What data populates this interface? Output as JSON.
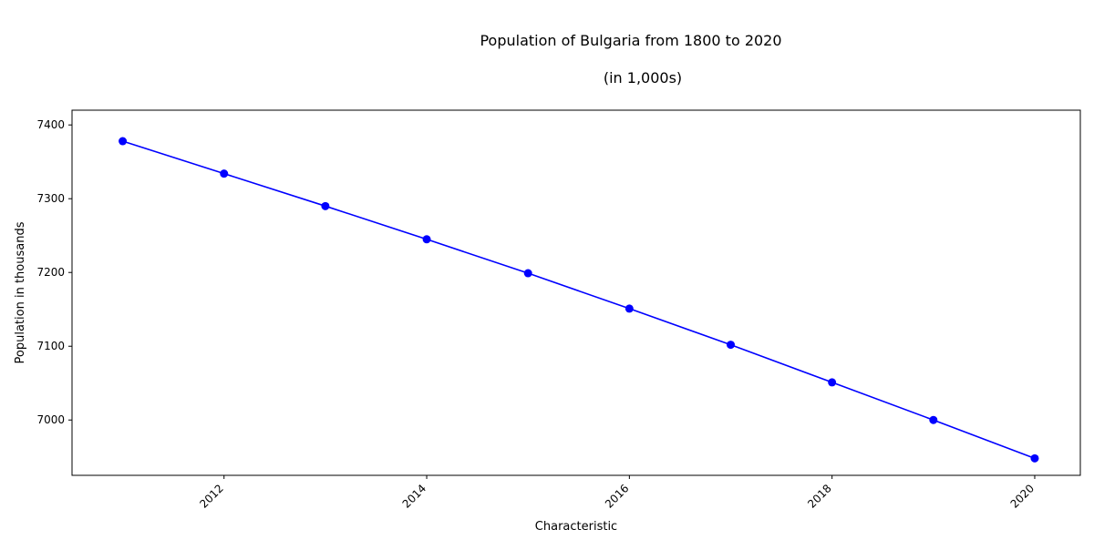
{
  "chart_data": {
    "type": "line",
    "title": "Population of Bulgaria from 1800 to 2020",
    "subtitle": "(in 1,000s)",
    "xlabel": "Characteristic",
    "ylabel": "Population in thousands",
    "x": [
      2011,
      2012,
      2013,
      2014,
      2015,
      2016,
      2017,
      2018,
      2019,
      2020
    ],
    "series": [
      {
        "values": [
          7378,
          7334,
          7290,
          7245,
          7199,
          7151,
          7102,
          7051,
          7000,
          6948
        ]
      }
    ],
    "xlim": [
      2010.5,
      2020.45
    ],
    "ylim": [
      6925,
      7420
    ],
    "x_ticks": [
      "2012",
      "2014",
      "2016",
      "2018",
      "2020"
    ],
    "y_ticks": [
      "7000",
      "7100",
      "7200",
      "7300",
      "7400"
    ],
    "grid": false,
    "legend": "none",
    "line_color": "#0000ff",
    "marker_color": "#0000ff"
  }
}
